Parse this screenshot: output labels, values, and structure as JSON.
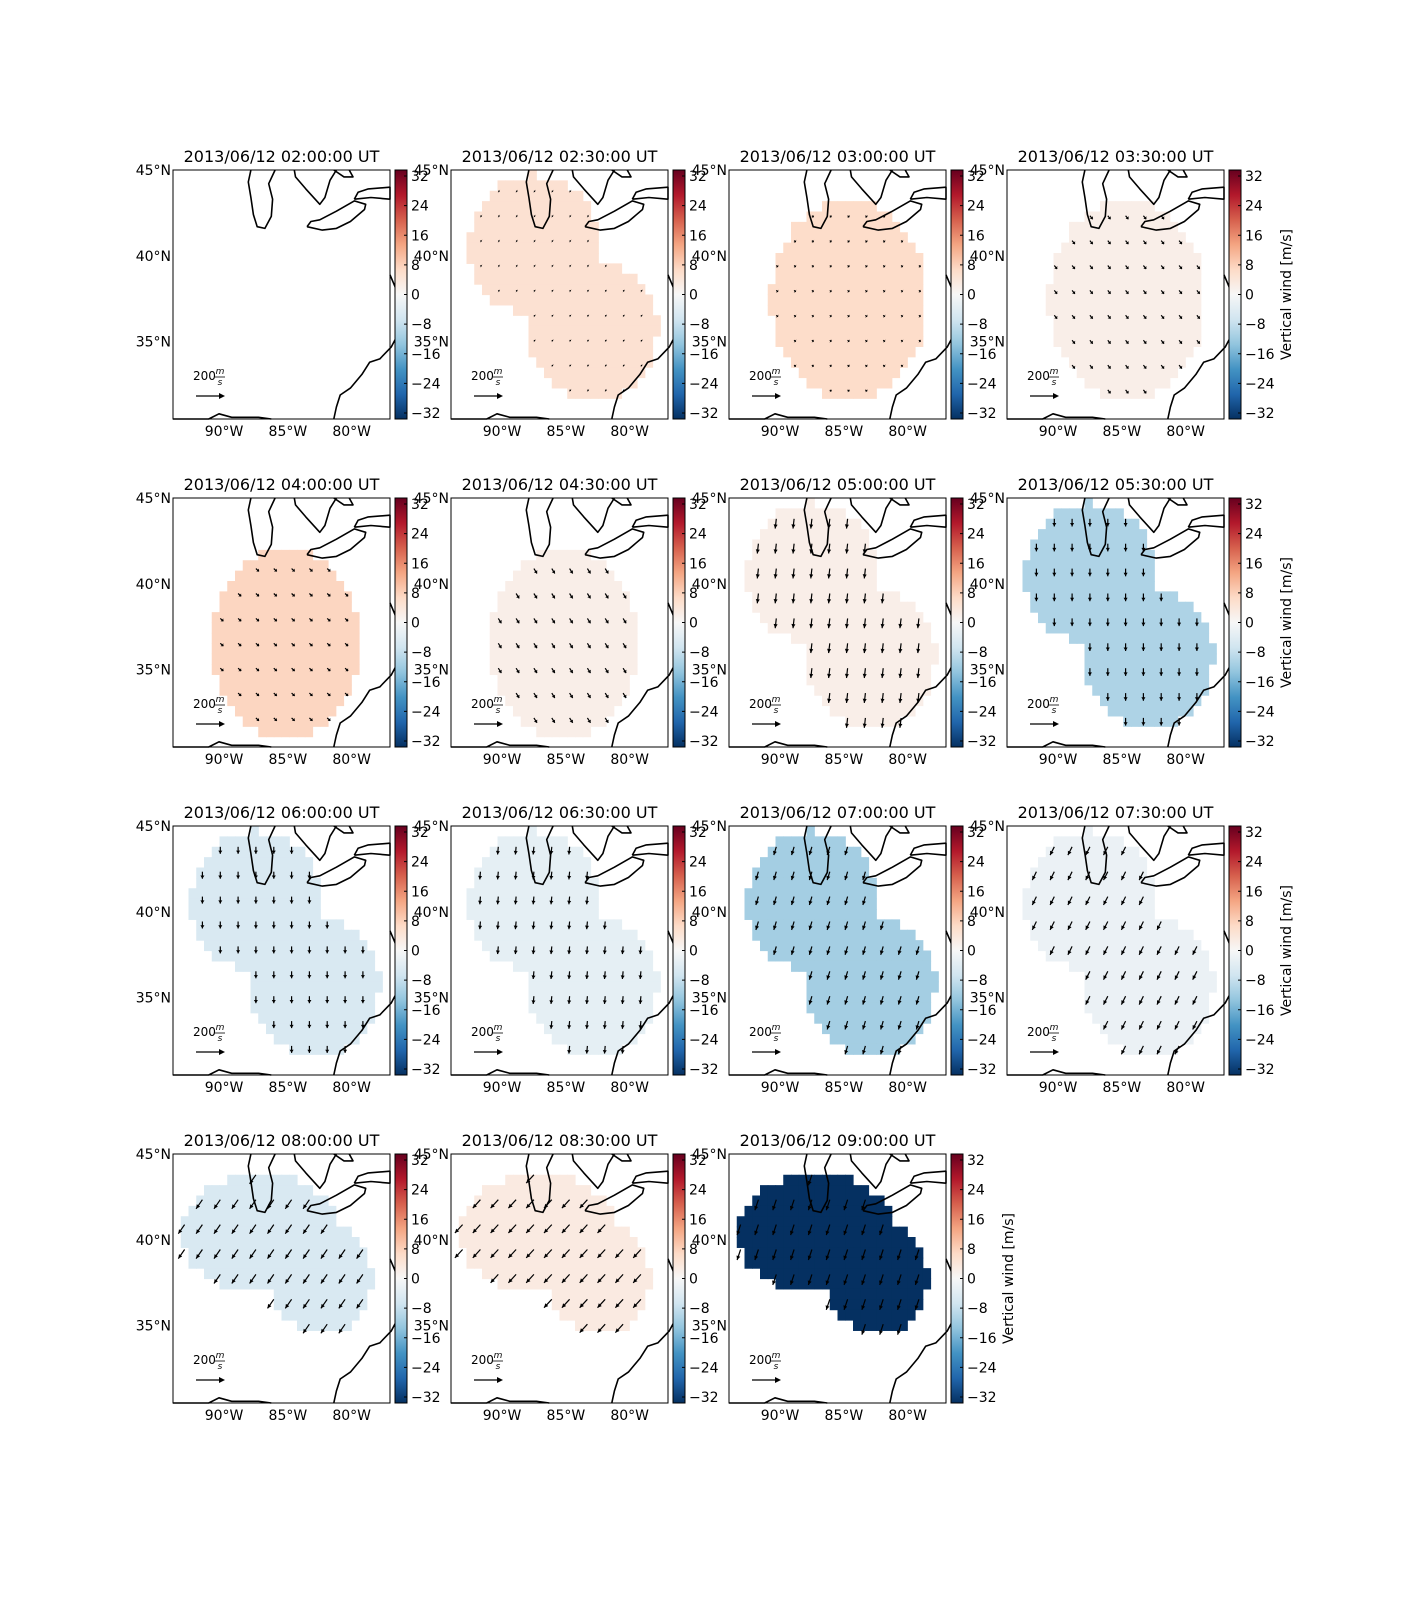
{
  "figure": {
    "colormap": [
      "#053061",
      "#2166ac",
      "#4393c3",
      "#92c5de",
      "#d1e5f0",
      "#f7f7f7",
      "#fddbc7",
      "#f4a582",
      "#d6604d",
      "#b2182b",
      "#67001f"
    ],
    "colorbar_ticks": [
      "32",
      "24",
      "16",
      "8",
      "0",
      "−8",
      "−16",
      "−24",
      "−32"
    ],
    "colorbar_label": "Vertical wind [m/s]",
    "lat_ticks": [
      "45°N",
      "40°N",
      "35°N"
    ],
    "lon_ticks": [
      "90°W",
      "85°W",
      "80°W"
    ],
    "scale_label_value": "200",
    "scale_label_num": "m",
    "scale_label_den": "s"
  },
  "chart_data": [
    {
      "type": "heatmap",
      "title": "2013/06/12 02:00:00 UT",
      "vertical_wind": null,
      "vector_mean": null,
      "region": "none",
      "colorbar_label_shown": false
    },
    {
      "type": "heatmap",
      "title": "2013/06/12 02:30:00 UT",
      "vertical_wind": 5,
      "vector_mean": {
        "u": 8,
        "v": -6
      },
      "region": "northwest-southeast",
      "colorbar_label_shown": false
    },
    {
      "type": "heatmap",
      "title": "2013/06/12 03:00:00 UT",
      "vertical_wind": 6,
      "vector_mean": {
        "u": 12,
        "v": -10
      },
      "region": "central",
      "colorbar_label_shown": false
    },
    {
      "type": "heatmap",
      "title": "2013/06/12 03:30:00 UT",
      "vertical_wind": 2,
      "vector_mean": {
        "u": 20,
        "v": -25
      },
      "region": "central",
      "colorbar_label_shown": true
    },
    {
      "type": "heatmap",
      "title": "2013/06/12 04:00:00 UT",
      "vertical_wind": 7,
      "vector_mean": {
        "u": 22,
        "v": -20
      },
      "region": "central-south",
      "colorbar_label_shown": false
    },
    {
      "type": "heatmap",
      "title": "2013/06/12 04:30:00 UT",
      "vertical_wind": 2,
      "vector_mean": {
        "u": 22,
        "v": -35
      },
      "region": "central-south",
      "colorbar_label_shown": false
    },
    {
      "type": "heatmap",
      "title": "2013/06/12 05:00:00 UT",
      "vertical_wind": 2,
      "vector_mean": {
        "u": -8,
        "v": -70
      },
      "region": "northwest-southeast",
      "colorbar_label_shown": false
    },
    {
      "type": "heatmap",
      "title": "2013/06/12 05:30:00 UT",
      "vertical_wind": -10,
      "vector_mean": {
        "u": 0,
        "v": -55
      },
      "region": "northwest-southeast",
      "colorbar_label_shown": true
    },
    {
      "type": "heatmap",
      "title": "2013/06/12 06:00:00 UT",
      "vertical_wind": -5,
      "vector_mean": {
        "u": 0,
        "v": -50
      },
      "region": "northwest-southeast",
      "colorbar_label_shown": false
    },
    {
      "type": "heatmap",
      "title": "2013/06/12 06:30:00 UT",
      "vertical_wind": -3,
      "vector_mean": {
        "u": -5,
        "v": -55
      },
      "region": "northwest-southeast",
      "colorbar_label_shown": false
    },
    {
      "type": "heatmap",
      "title": "2013/06/12 07:00:00 UT",
      "vertical_wind": -11,
      "vector_mean": {
        "u": -18,
        "v": -60
      },
      "region": "northwest-southeast",
      "colorbar_label_shown": false
    },
    {
      "type": "heatmap",
      "title": "2013/06/12 07:30:00 UT",
      "vertical_wind": -2,
      "vector_mean": {
        "u": -30,
        "v": -60
      },
      "region": "northwest-southeast",
      "colorbar_label_shown": true
    },
    {
      "type": "heatmap",
      "title": "2013/06/12 08:00:00 UT",
      "vertical_wind": -5,
      "vector_mean": {
        "u": -45,
        "v": -65
      },
      "region": "north",
      "colorbar_label_shown": false
    },
    {
      "type": "heatmap",
      "title": "2013/06/12 08:30:00 UT",
      "vertical_wind": 3,
      "vector_mean": {
        "u": -55,
        "v": -60
      },
      "region": "north",
      "colorbar_label_shown": false
    },
    {
      "type": "heatmap",
      "title": "2013/06/12 09:00:00 UT",
      "vertical_wind": -33,
      "vector_mean": {
        "u": -25,
        "v": -75
      },
      "region": "north",
      "colorbar_label_shown": true
    }
  ]
}
